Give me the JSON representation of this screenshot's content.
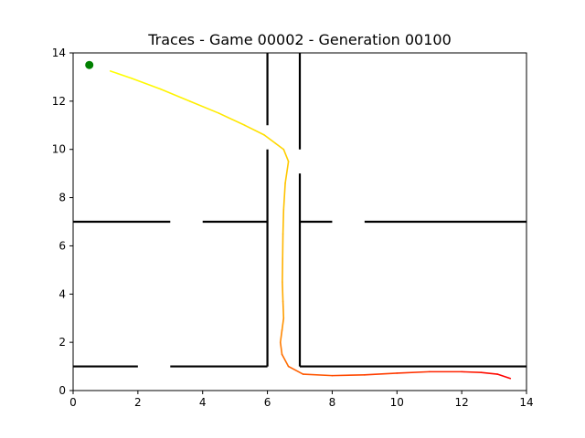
{
  "chart_data": {
    "type": "line",
    "title": "Traces - Game 00002 - Generation 00100",
    "xlabel": "",
    "ylabel": "",
    "xlim": [
      0,
      14
    ],
    "ylim": [
      0,
      14
    ],
    "x_ticks": [
      0,
      2,
      4,
      6,
      8,
      10,
      12,
      14
    ],
    "y_ticks": [
      0,
      2,
      4,
      6,
      8,
      10,
      12,
      14
    ],
    "x_tick_labels": [
      "0",
      "2",
      "4",
      "6",
      "8",
      "10",
      "12",
      "14"
    ],
    "y_tick_labels": [
      "0",
      "2",
      "4",
      "6",
      "8",
      "10",
      "12",
      "14"
    ],
    "grid": false,
    "walls": [
      {
        "x": [
          0,
          2
        ],
        "y": [
          1,
          1
        ]
      },
      {
        "x": [
          3,
          6
        ],
        "y": [
          1,
          1
        ]
      },
      {
        "x": [
          6,
          6
        ],
        "y": [
          1,
          7
        ]
      },
      {
        "x": [
          7,
          7
        ],
        "y": [
          1,
          9
        ]
      },
      {
        "x": [
          7,
          14
        ],
        "y": [
          1,
          1
        ]
      },
      {
        "x": [
          0,
          3
        ],
        "y": [
          7,
          7
        ]
      },
      {
        "x": [
          4,
          6
        ],
        "y": [
          7,
          7
        ]
      },
      {
        "x": [
          7,
          8
        ],
        "y": [
          7,
          7
        ]
      },
      {
        "x": [
          9,
          14
        ],
        "y": [
          7,
          7
        ]
      },
      {
        "x": [
          6,
          6
        ],
        "y": [
          7,
          10
        ]
      },
      {
        "x": [
          6,
          6
        ],
        "y": [
          11,
          14
        ]
      },
      {
        "x": [
          7,
          7
        ],
        "y": [
          10,
          14
        ]
      }
    ],
    "trace": {
      "x": [
        1.15,
        1.8,
        2.7,
        3.6,
        4.5,
        5.3,
        5.9,
        6.25,
        6.5,
        6.65,
        6.55,
        6.5,
        6.48,
        6.47,
        6.46,
        6.48,
        6.5,
        6.45,
        6.4,
        6.45,
        6.65,
        7.1,
        8.0,
        9.0,
        10.0,
        11.0,
        12.0,
        12.6,
        13.1,
        13.5
      ],
      "y": [
        13.25,
        12.95,
        12.5,
        12.0,
        11.5,
        11.0,
        10.6,
        10.25,
        10.0,
        9.5,
        8.6,
        7.5,
        6.5,
        5.5,
        4.5,
        3.7,
        3.0,
        2.5,
        2.0,
        1.5,
        1.0,
        0.68,
        0.62,
        0.65,
        0.72,
        0.78,
        0.78,
        0.75,
        0.68,
        0.5
      ],
      "colors": [
        "#ffff00",
        "#ffaa00",
        "#ff0000"
      ]
    },
    "start_marker": {
      "x": 0.5,
      "y": 13.5,
      "color": "#008000"
    }
  }
}
